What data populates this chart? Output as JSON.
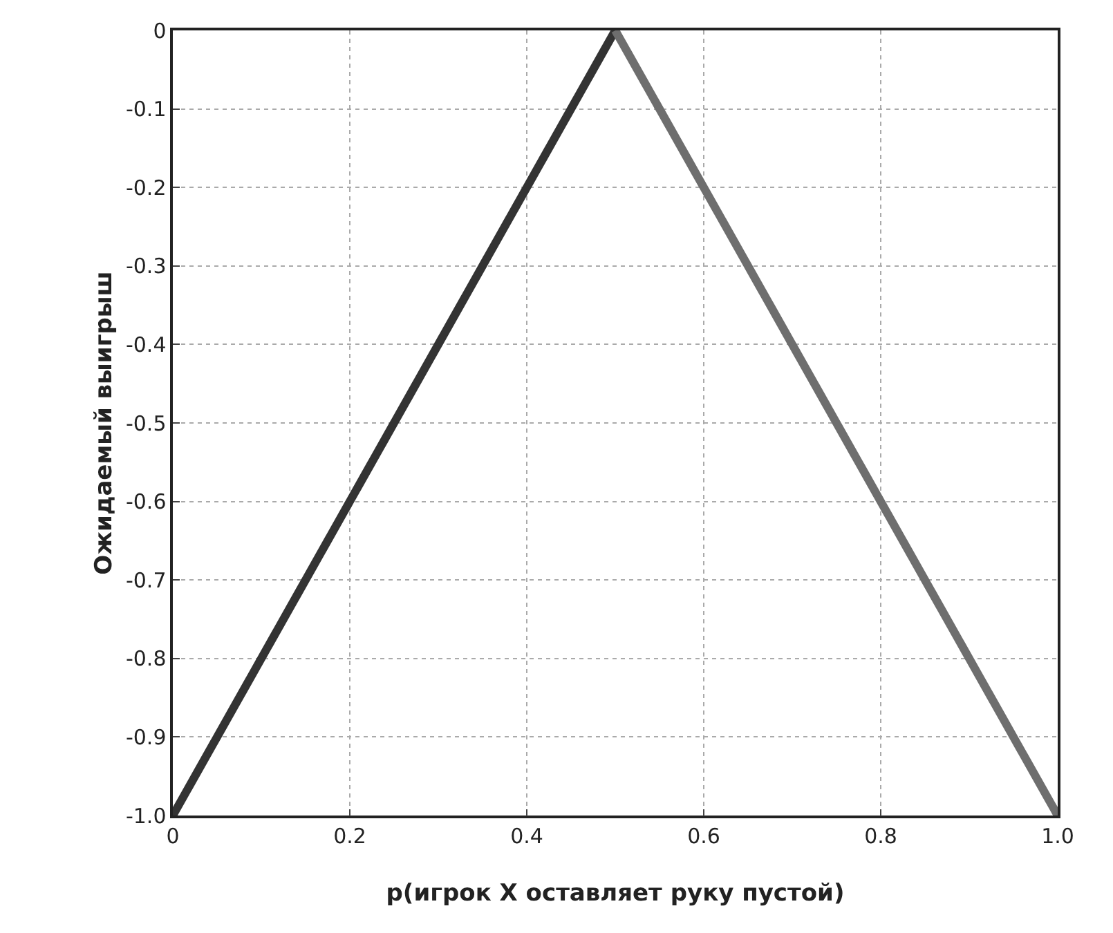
{
  "chart_data": {
    "type": "line",
    "xlabel": "p(игрок X оставляет руку пустой)",
    "ylabel": "Ожидаемый выигрыш",
    "series": [
      {
        "color": "#333333",
        "x": [
          0,
          0.5
        ],
        "values": [
          -1,
          0
        ]
      },
      {
        "color": "#6e6e6e",
        "x": [
          0.5,
          1
        ],
        "values": [
          0,
          -1
        ]
      }
    ],
    "xlim": [
      0,
      1
    ],
    "xticks": [
      0,
      0.2,
      0.4,
      0.6,
      0.8,
      {
        "value": 1,
        "label": "1.0"
      }
    ],
    "ylim": [
      -1,
      0
    ],
    "yticks": [
      0,
      -0.1,
      -0.2,
      -0.3,
      -0.4,
      -0.5,
      -0.6,
      -0.7,
      -0.8,
      -0.9,
      {
        "value": -1,
        "label": "-1.0"
      }
    ],
    "grid": true,
    "marker": "none",
    "line_style": "solid"
  }
}
